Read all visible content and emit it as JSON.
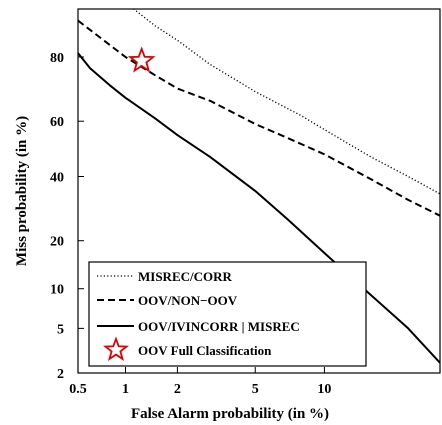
{
  "chart_data": {
    "type": "line",
    "subtype": "DET curve (normal deviate scale)",
    "title": "",
    "xlabel": "False Alarm probability (in %)",
    "ylabel": "Miss probability (in %)",
    "xlim": [
      0.5,
      25
    ],
    "ylim": [
      2,
      90
    ],
    "x_scale": "normal-deviate (probit)",
    "y_scale": "normal-deviate (probit)",
    "x_ticks": [
      0.5,
      1,
      2,
      5,
      10
    ],
    "x_tick_labels": [
      "0.5",
      "1",
      "2",
      "5",
      "10"
    ],
    "y_ticks": [
      2,
      5,
      10,
      20,
      40,
      60,
      80
    ],
    "y_tick_labels": [
      "2",
      "5",
      "10",
      "20",
      "40",
      "60",
      "80"
    ],
    "grid": false,
    "legend_position": "bottom-left",
    "series": [
      {
        "name": "MISREC/CORR",
        "line_style": "dotted",
        "color": "#000000",
        "x": [
          1.0,
          1.5,
          2.0,
          3.0,
          5.0,
          8.0,
          10.0,
          15.0,
          20.0,
          25.0
        ],
        "y": [
          91.0,
          87.0,
          84.0,
          78.0,
          70.0,
          62.0,
          57.0,
          47.0,
          40.0,
          34.0
        ]
      },
      {
        "name": "OOV/NON−OOV",
        "line_style": "dashed",
        "color": "#000000",
        "x": [
          0.5,
          1.0,
          1.5,
          2.0,
          3.0,
          5.0,
          7.0,
          10.0,
          15.0,
          20.0,
          25.0
        ],
        "y": [
          88.0,
          80.0,
          75.0,
          71.0,
          67.0,
          59.0,
          54.0,
          48.0,
          39.0,
          32.0,
          27.0
        ]
      },
      {
        "name": "OOV/IVINCORR | MISREC",
        "line_style": "solid",
        "color": "#000000",
        "x": [
          0.5,
          0.6,
          0.8,
          1.0,
          1.5,
          2.0,
          3.0,
          5.0,
          7.0,
          10.0,
          15.0,
          20.0,
          25.0
        ],
        "y": [
          81.0,
          77.0,
          72.0,
          68.0,
          61.0,
          55.0,
          47.0,
          35.0,
          26.0,
          17.0,
          9.0,
          5.0,
          2.5
        ]
      }
    ],
    "markers": [
      {
        "name": "OOV Full Classification",
        "shape": "star",
        "color": "#e00000",
        "x": 1.25,
        "y": 79.0
      }
    ]
  }
}
